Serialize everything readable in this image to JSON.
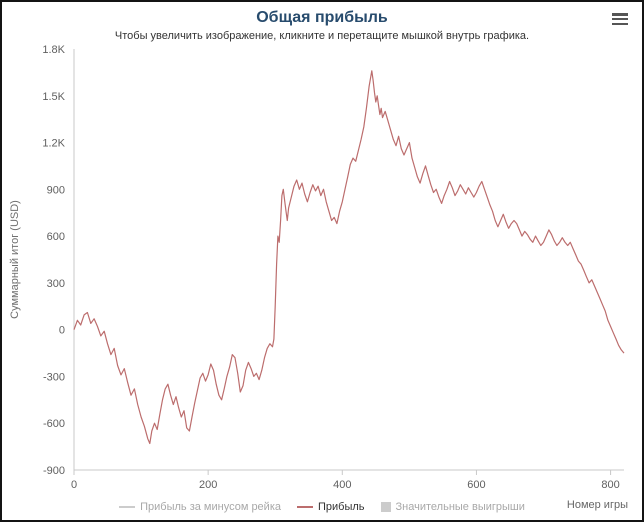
{
  "chart_data": {
    "type": "line",
    "title": "Общая прибыль",
    "subtitle": "Чтобы увеличить изображение, кликните и перетащите мышкой внутрь графика.",
    "xlabel": "Номер игры",
    "ylabel": "Суммарный итог (USD)",
    "series_name": "Прибыль",
    "xlim": [
      0,
      820
    ],
    "ylim": [
      -900,
      1800
    ],
    "grid": false,
    "legend_position": "bottom",
    "line_color": "#bc6d6d",
    "axis_color": "#c8c8c8",
    "tick_label_color": "#606060",
    "xticks": [
      {
        "v": 0,
        "label": "0"
      },
      {
        "v": 200,
        "label": "200"
      },
      {
        "v": 400,
        "label": "400"
      },
      {
        "v": 600,
        "label": "600"
      },
      {
        "v": 800,
        "label": "800"
      }
    ],
    "yticks": [
      {
        "v": 1800,
        "label": "1.8K"
      },
      {
        "v": 1500,
        "label": "1.5K"
      },
      {
        "v": 1200,
        "label": "1.2K"
      },
      {
        "v": 900,
        "label": "900"
      },
      {
        "v": 600,
        "label": "600"
      },
      {
        "v": 300,
        "label": "300"
      },
      {
        "v": 0,
        "label": "0"
      },
      {
        "v": -300,
        "label": "-300"
      },
      {
        "v": -600,
        "label": "-600"
      },
      {
        "v": -900,
        "label": "-900"
      }
    ],
    "legend": [
      {
        "label": "Прибыль за минусом рейка",
        "type": "line",
        "color": "#cccccc",
        "state": "disabled"
      },
      {
        "label": "Прибыль",
        "type": "line",
        "color": "#bc6d6d",
        "state": "active"
      },
      {
        "label": "Значительные выигрыши",
        "type": "box",
        "color": "#cccccc",
        "state": "disabled"
      }
    ],
    "points": [
      [
        0,
        0
      ],
      [
        5,
        60
      ],
      [
        10,
        30
      ],
      [
        15,
        95
      ],
      [
        20,
        110
      ],
      [
        25,
        40
      ],
      [
        30,
        70
      ],
      [
        35,
        20
      ],
      [
        40,
        -40
      ],
      [
        45,
        -10
      ],
      [
        50,
        -90
      ],
      [
        55,
        -160
      ],
      [
        60,
        -120
      ],
      [
        65,
        -230
      ],
      [
        70,
        -290
      ],
      [
        75,
        -250
      ],
      [
        80,
        -340
      ],
      [
        85,
        -420
      ],
      [
        90,
        -380
      ],
      [
        95,
        -480
      ],
      [
        100,
        -560
      ],
      [
        105,
        -620
      ],
      [
        110,
        -700
      ],
      [
        113,
        -730
      ],
      [
        116,
        -650
      ],
      [
        120,
        -600
      ],
      [
        124,
        -640
      ],
      [
        128,
        -540
      ],
      [
        132,
        -450
      ],
      [
        136,
        -380
      ],
      [
        140,
        -350
      ],
      [
        144,
        -420
      ],
      [
        148,
        -480
      ],
      [
        152,
        -430
      ],
      [
        156,
        -500
      ],
      [
        160,
        -560
      ],
      [
        164,
        -520
      ],
      [
        168,
        -630
      ],
      [
        172,
        -650
      ],
      [
        176,
        -560
      ],
      [
        180,
        -470
      ],
      [
        184,
        -390
      ],
      [
        188,
        -310
      ],
      [
        192,
        -280
      ],
      [
        196,
        -330
      ],
      [
        200,
        -290
      ],
      [
        204,
        -220
      ],
      [
        208,
        -260
      ],
      [
        212,
        -350
      ],
      [
        216,
        -420
      ],
      [
        220,
        -450
      ],
      [
        224,
        -380
      ],
      [
        228,
        -300
      ],
      [
        232,
        -240
      ],
      [
        236,
        -160
      ],
      [
        240,
        -180
      ],
      [
        244,
        -280
      ],
      [
        248,
        -400
      ],
      [
        252,
        -360
      ],
      [
        256,
        -260
      ],
      [
        260,
        -210
      ],
      [
        264,
        -250
      ],
      [
        268,
        -300
      ],
      [
        272,
        -280
      ],
      [
        276,
        -320
      ],
      [
        280,
        -260
      ],
      [
        284,
        -180
      ],
      [
        288,
        -120
      ],
      [
        292,
        -90
      ],
      [
        296,
        -110
      ],
      [
        298,
        -60
      ],
      [
        300,
        150
      ],
      [
        302,
        420
      ],
      [
        304,
        600
      ],
      [
        306,
        560
      ],
      [
        308,
        700
      ],
      [
        310,
        860
      ],
      [
        312,
        900
      ],
      [
        314,
        830
      ],
      [
        316,
        760
      ],
      [
        318,
        700
      ],
      [
        320,
        780
      ],
      [
        324,
        850
      ],
      [
        328,
        920
      ],
      [
        332,
        960
      ],
      [
        336,
        900
      ],
      [
        340,
        940
      ],
      [
        344,
        870
      ],
      [
        348,
        820
      ],
      [
        352,
        880
      ],
      [
        356,
        930
      ],
      [
        360,
        890
      ],
      [
        364,
        920
      ],
      [
        368,
        860
      ],
      [
        372,
        900
      ],
      [
        376,
        820
      ],
      [
        380,
        760
      ],
      [
        384,
        700
      ],
      [
        388,
        720
      ],
      [
        392,
        680
      ],
      [
        396,
        760
      ],
      [
        400,
        820
      ],
      [
        404,
        900
      ],
      [
        408,
        980
      ],
      [
        412,
        1060
      ],
      [
        416,
        1100
      ],
      [
        420,
        1080
      ],
      [
        424,
        1150
      ],
      [
        428,
        1220
      ],
      [
        432,
        1300
      ],
      [
        436,
        1420
      ],
      [
        440,
        1560
      ],
      [
        444,
        1660
      ],
      [
        446,
        1600
      ],
      [
        448,
        1520
      ],
      [
        450,
        1460
      ],
      [
        452,
        1500
      ],
      [
        454,
        1440
      ],
      [
        456,
        1380
      ],
      [
        458,
        1420
      ],
      [
        460,
        1360
      ],
      [
        464,
        1400
      ],
      [
        468,
        1340
      ],
      [
        472,
        1280
      ],
      [
        476,
        1220
      ],
      [
        480,
        1180
      ],
      [
        484,
        1240
      ],
      [
        488,
        1160
      ],
      [
        492,
        1120
      ],
      [
        496,
        1160
      ],
      [
        500,
        1200
      ],
      [
        504,
        1100
      ],
      [
        508,
        1040
      ],
      [
        512,
        980
      ],
      [
        516,
        940
      ],
      [
        520,
        1000
      ],
      [
        524,
        1050
      ],
      [
        528,
        990
      ],
      [
        532,
        930
      ],
      [
        536,
        880
      ],
      [
        540,
        900
      ],
      [
        544,
        850
      ],
      [
        548,
        810
      ],
      [
        552,
        860
      ],
      [
        556,
        900
      ],
      [
        560,
        950
      ],
      [
        564,
        910
      ],
      [
        568,
        860
      ],
      [
        572,
        890
      ],
      [
        576,
        930
      ],
      [
        580,
        900
      ],
      [
        584,
        870
      ],
      [
        588,
        910
      ],
      [
        592,
        880
      ],
      [
        596,
        850
      ],
      [
        600,
        880
      ],
      [
        604,
        920
      ],
      [
        608,
        950
      ],
      [
        612,
        900
      ],
      [
        616,
        850
      ],
      [
        620,
        800
      ],
      [
        624,
        760
      ],
      [
        628,
        700
      ],
      [
        632,
        660
      ],
      [
        636,
        700
      ],
      [
        640,
        740
      ],
      [
        644,
        690
      ],
      [
        648,
        650
      ],
      [
        652,
        680
      ],
      [
        656,
        700
      ],
      [
        660,
        680
      ],
      [
        664,
        640
      ],
      [
        668,
        600
      ],
      [
        672,
        630
      ],
      [
        676,
        610
      ],
      [
        680,
        580
      ],
      [
        684,
        560
      ],
      [
        688,
        600
      ],
      [
        692,
        570
      ],
      [
        696,
        540
      ],
      [
        700,
        560
      ],
      [
        704,
        600
      ],
      [
        708,
        640
      ],
      [
        712,
        610
      ],
      [
        716,
        570
      ],
      [
        720,
        540
      ],
      [
        724,
        560
      ],
      [
        728,
        590
      ],
      [
        732,
        560
      ],
      [
        736,
        540
      ],
      [
        740,
        560
      ],
      [
        744,
        520
      ],
      [
        748,
        480
      ],
      [
        752,
        440
      ],
      [
        756,
        420
      ],
      [
        760,
        380
      ],
      [
        764,
        340
      ],
      [
        768,
        300
      ],
      [
        772,
        320
      ],
      [
        776,
        280
      ],
      [
        780,
        240
      ],
      [
        784,
        200
      ],
      [
        788,
        160
      ],
      [
        792,
        120
      ],
      [
        796,
        60
      ],
      [
        800,
        20
      ],
      [
        804,
        -20
      ],
      [
        808,
        -60
      ],
      [
        812,
        -100
      ],
      [
        816,
        -130
      ],
      [
        820,
        -150
      ]
    ]
  }
}
